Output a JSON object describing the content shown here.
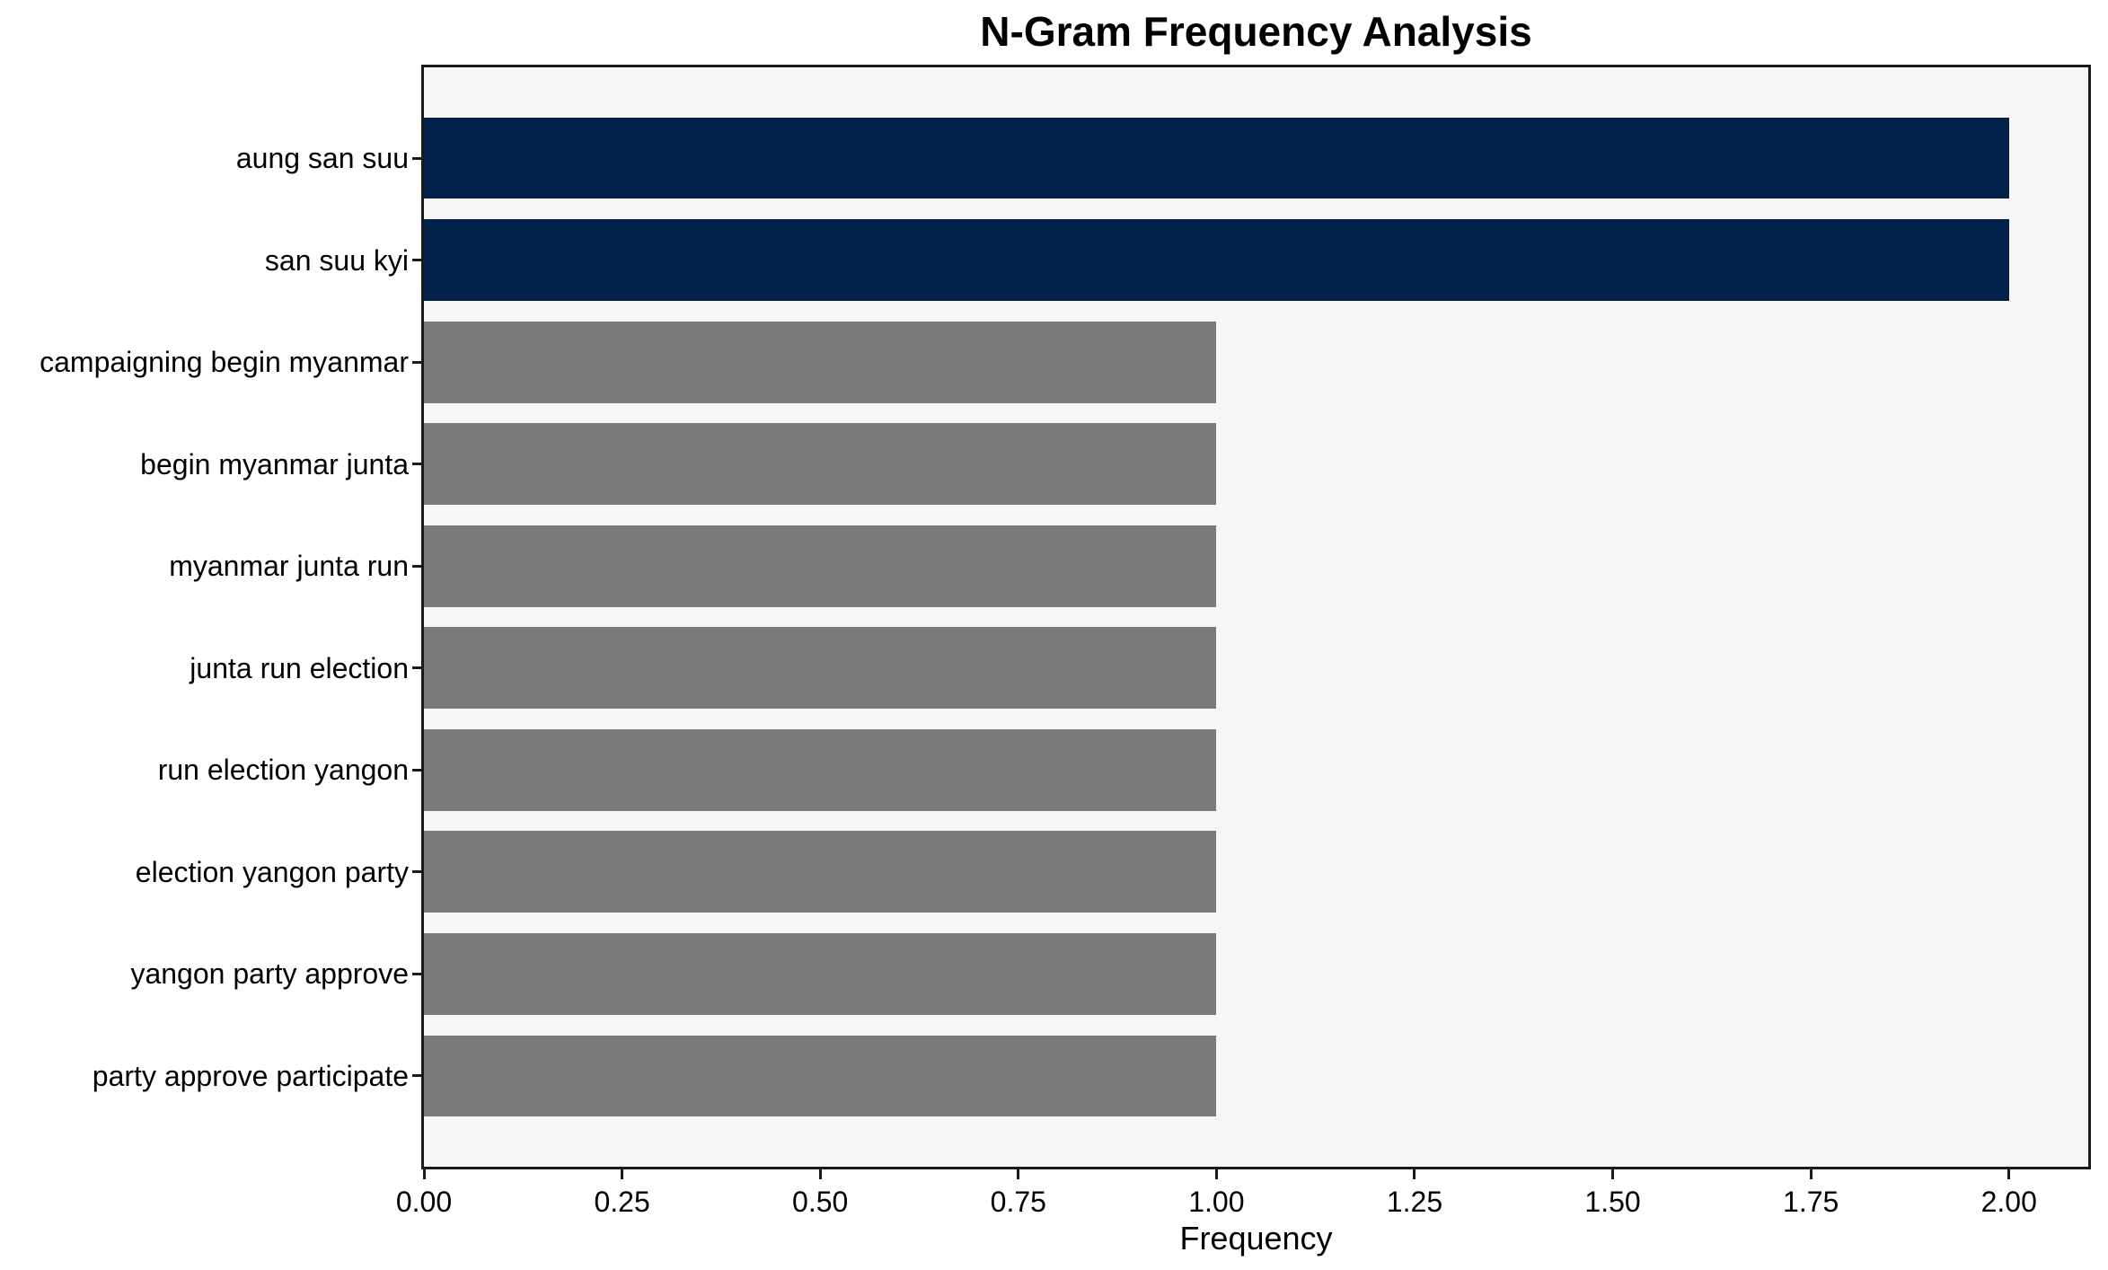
{
  "figure": {
    "background": "#ffffff",
    "plot_background": "#f7f6f5",
    "axis_color": "#1a1a1a",
    "accent_color": "#03234d",
    "muted_color": "#7b7a78"
  },
  "chart_data": {
    "type": "bar",
    "orientation": "horizontal",
    "title": "N-Gram Frequency Analysis",
    "xlabel": "Frequency",
    "ylabel": "",
    "categories": [
      "aung san suu",
      "san suu kyi",
      "campaigning begin myanmar",
      "begin myanmar junta",
      "myanmar junta run",
      "junta run election",
      "run election yangon",
      "election yangon party",
      "yangon party approve",
      "party approve participate"
    ],
    "values": [
      2,
      2,
      1,
      1,
      1,
      1,
      1,
      1,
      1,
      1
    ],
    "bar_colors": [
      "#03234d",
      "#03234d",
      "#7b7a78",
      "#7b7a78",
      "#7b7a78",
      "#7b7a78",
      "#7b7a78",
      "#7b7a78",
      "#7b7a78",
      "#7b7a78"
    ],
    "xlim": [
      0,
      2.1
    ],
    "xticks": [
      {
        "value": 0.0,
        "label": "0.00"
      },
      {
        "value": 0.25,
        "label": "0.25"
      },
      {
        "value": 0.5,
        "label": "0.50"
      },
      {
        "value": 0.75,
        "label": "0.75"
      },
      {
        "value": 1.0,
        "label": "1.00"
      },
      {
        "value": 1.25,
        "label": "1.25"
      },
      {
        "value": 1.5,
        "label": "1.50"
      },
      {
        "value": 1.75,
        "label": "1.75"
      },
      {
        "value": 2.0,
        "label": "2.00"
      }
    ],
    "bar_rel_height": 0.8,
    "grid": false,
    "legend": null
  }
}
